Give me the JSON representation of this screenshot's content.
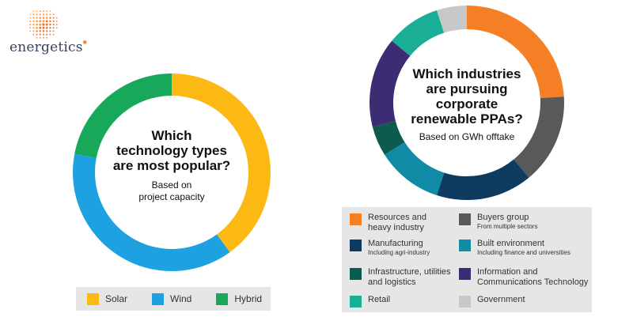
{
  "brand": {
    "name": "energetics",
    "logo_icon": "orange-dotted-sphere-logo",
    "accent": "#f08a24"
  },
  "chart_data": [
    {
      "type": "pie",
      "title": "Which technology types are most popular?",
      "subtitle": "Based on project capacity",
      "categories": [
        "Solar",
        "Wind",
        "Hybrid"
      ],
      "values": [
        40,
        38,
        22
      ],
      "colors": [
        "#fdb913",
        "#1ea1e0",
        "#17a85a"
      ],
      "legend": "bottom"
    },
    {
      "type": "pie",
      "title": "Which industries are pursuing corporate renewable PPAs?",
      "subtitle": "Based on GWh offtake",
      "categories": [
        "Resources and heavy industry",
        "Buyers group",
        "Manufacturing",
        "Built environment",
        "Infrastructure, utilities and logistics",
        "Information and Communications Technology",
        "Retail",
        "Government"
      ],
      "values": [
        24,
        15,
        16,
        11,
        5,
        15,
        9,
        5
      ],
      "order": [
        0,
        1,
        2,
        3,
        4,
        5,
        6,
        7
      ],
      "colors": [
        "#f47f24",
        "#595959",
        "#0f3b60",
        "#108ba6",
        "#0c5a50",
        "#3c2c74",
        "#1aae96",
        "#c8c8c8"
      ],
      "legend": "bottom"
    }
  ],
  "left": {
    "q_lines": [
      "Which",
      "technology types",
      "are most popular?"
    ],
    "sub_lines": [
      "Based on",
      "project capacity"
    ],
    "legend": [
      {
        "label": "Solar",
        "color": "#fdb913"
      },
      {
        "label": "Wind",
        "color": "#1ea1e0"
      },
      {
        "label": "Hybrid",
        "color": "#17a85a"
      }
    ]
  },
  "right": {
    "q_lines": [
      "Which industries",
      "are pursuing",
      "corporate",
      "renewable PPAs?"
    ],
    "sub_lines": [
      "Based on GWh offtake"
    ],
    "legend": [
      {
        "lines": [
          "Resources and",
          "heavy industry"
        ],
        "note": "",
        "color": "#f47f24"
      },
      {
        "lines": [
          "Buyers group"
        ],
        "note": "From multiple sectors",
        "color": "#595959"
      },
      {
        "lines": [
          "Manufacturing"
        ],
        "note": "Including agri-industry",
        "color": "#0f3b60"
      },
      {
        "lines": [
          "Built environment"
        ],
        "note": "Including finance and universities",
        "color": "#108ba6"
      },
      {
        "lines": [
          "Infrastructure, utilities",
          "and logistics"
        ],
        "note": "",
        "color": "#0c5a50"
      },
      {
        "lines": [
          "Information and",
          "Communications Technology"
        ],
        "note": "",
        "color": "#3c2c74"
      },
      {
        "lines": [
          "Retail"
        ],
        "note": "",
        "color": "#1aae96"
      },
      {
        "lines": [
          "Government"
        ],
        "note": "",
        "color": "#c8c8c8"
      }
    ]
  }
}
